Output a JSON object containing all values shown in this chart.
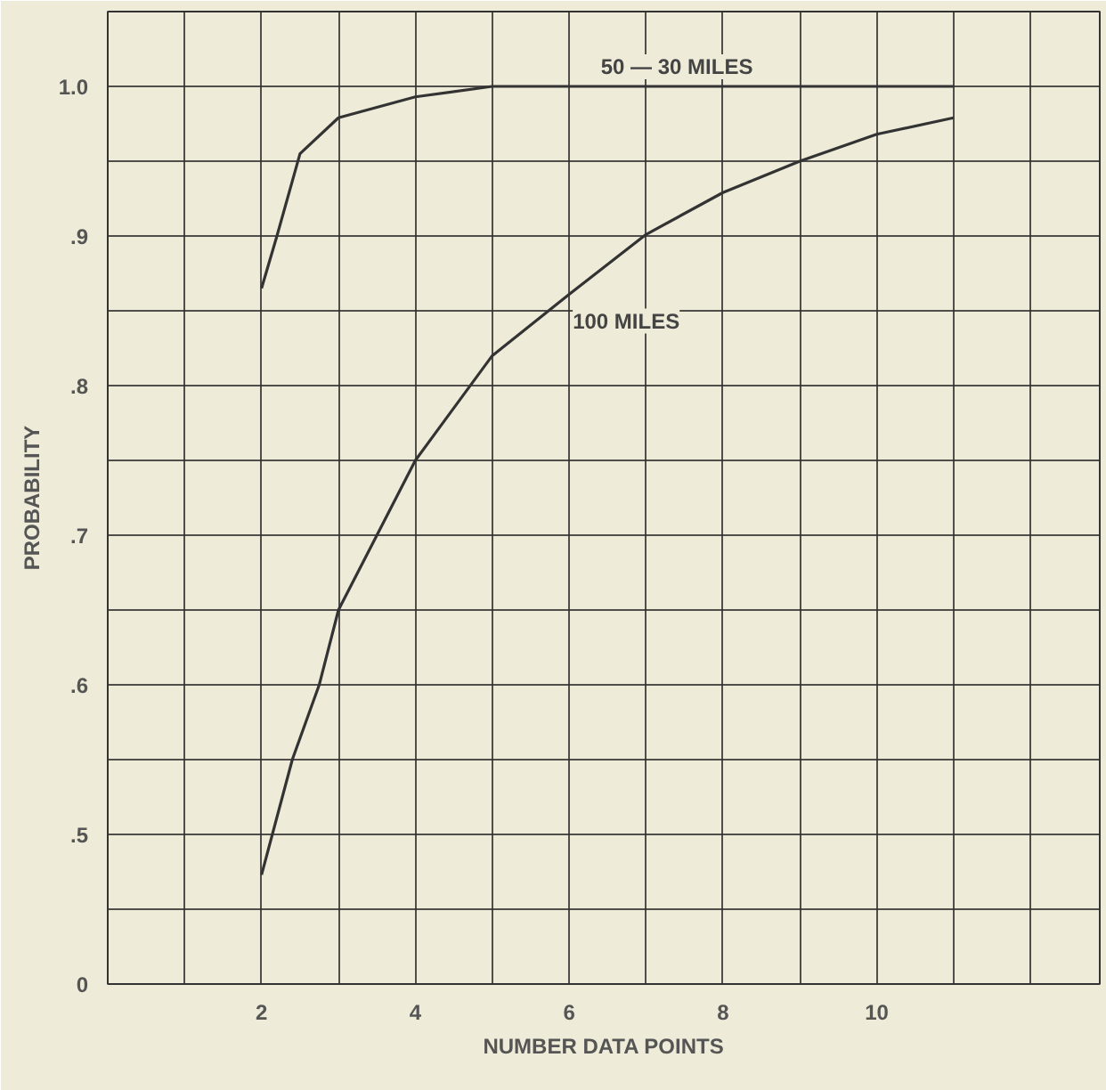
{
  "chart_data": {
    "type": "line",
    "xlabel": "NUMBER DATA POINTS",
    "ylabel": "PROBABILITY",
    "series": [
      {
        "name": "50 — 30 MILES",
        "color": "#333333",
        "x": [
          2,
          2.2,
          2.5,
          3,
          4,
          5,
          11
        ],
        "values": [
          0.865,
          0.9,
          0.955,
          0.979,
          0.993,
          1.0,
          1.0
        ]
      },
      {
        "name": "100 MILES",
        "color": "#333333",
        "x": [
          2,
          2.4,
          2.75,
          3,
          3.5,
          4,
          5,
          6,
          7,
          8,
          9,
          10,
          11
        ],
        "values": [
          0.473,
          0.55,
          0.6,
          0.65,
          0.7,
          0.75,
          0.82,
          0.861,
          0.901,
          0.929,
          0.95,
          0.968,
          0.979
        ]
      }
    ],
    "xlim": [
      0,
      12.9
    ],
    "ylim": [
      0.4,
      1.05
    ],
    "xticks": [
      {
        "value": 0,
        "label": null
      },
      {
        "value": 1,
        "label": null
      },
      2,
      {
        "value": 3,
        "label": null
      },
      4,
      {
        "value": 5,
        "label": null
      },
      6,
      {
        "value": 7,
        "label": null
      },
      8,
      {
        "value": 9,
        "label": null
      },
      10,
      {
        "value": 11,
        "label": null
      },
      {
        "value": 12,
        "label": null
      }
    ],
    "yticks": [
      {
        "value": 0.4,
        "label": "0"
      },
      {
        "value": 0.45,
        "label": null
      },
      {
        "value": 0.5,
        "label": ".5"
      },
      {
        "value": 0.55,
        "label": null
      },
      {
        "value": 0.6,
        "label": ".6"
      },
      {
        "value": 0.65,
        "label": null
      },
      {
        "value": 0.7,
        "label": ".7"
      },
      {
        "value": 0.75,
        "label": null
      },
      {
        "value": 0.8,
        "label": ".8"
      },
      {
        "value": 0.85,
        "label": null
      },
      {
        "value": 0.9,
        "label": ".9"
      },
      {
        "value": 0.95,
        "label": null
      },
      {
        "value": 1.0,
        "label": "1.0"
      }
    ],
    "grid": true,
    "marker": "none",
    "line_style": "solid"
  }
}
